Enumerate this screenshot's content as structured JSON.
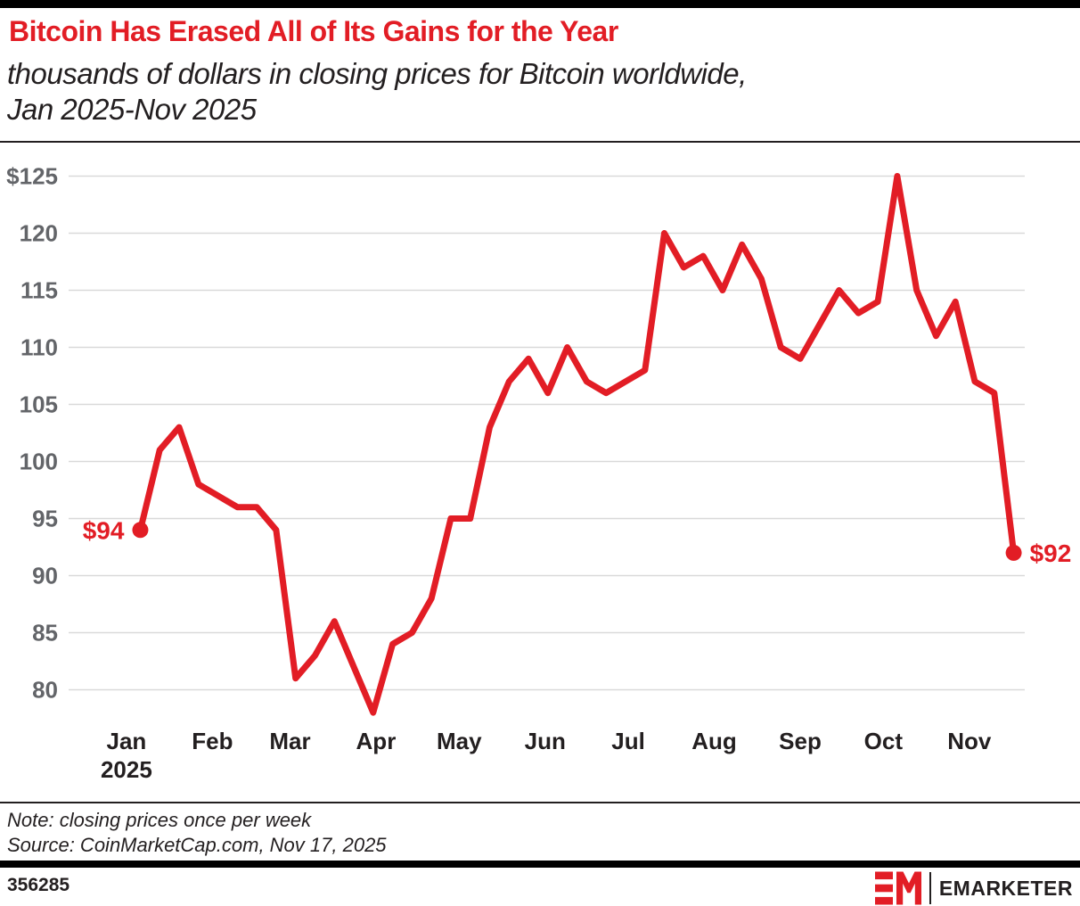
{
  "header": {
    "title": "Bitcoin Has Erased All of Its Gains for the Year",
    "subtitle_line1": "thousands of dollars in closing prices for Bitcoin worldwide,",
    "subtitle_line2": "Jan 2025-Nov 2025"
  },
  "chart_data": {
    "type": "line",
    "title": "Bitcoin weekly closing price, thousands of dollars, Jan 2025-Nov 2025",
    "xlabel": "",
    "ylabel": "thousands of dollars",
    "x_unit": "weeks (one closing price per week, Jan 6-Nov 17, 2025)",
    "values": [
      94,
      101,
      103,
      98,
      97,
      96,
      96,
      94,
      81,
      83,
      86,
      82,
      78,
      84,
      85,
      88,
      95,
      95,
      103,
      107,
      109,
      106,
      110,
      107,
      106,
      107,
      108,
      120,
      117,
      118,
      115,
      119,
      116,
      110,
      109,
      112,
      115,
      113,
      114,
      125,
      115,
      111,
      114,
      107,
      106,
      92
    ],
    "first_point": {
      "label": "$94",
      "value": 94
    },
    "last_point": {
      "label": "$92",
      "value": 92
    },
    "y_ticks": [
      {
        "label": "$125",
        "value": 125
      },
      {
        "label": "120",
        "value": 120
      },
      {
        "label": "115",
        "value": 115
      },
      {
        "label": "110",
        "value": 110
      },
      {
        "label": "105",
        "value": 105
      },
      {
        "label": "100",
        "value": 100
      },
      {
        "label": "95",
        "value": 95
      },
      {
        "label": "90",
        "value": 90
      },
      {
        "label": "85",
        "value": 85
      },
      {
        "label": "80",
        "value": 80
      }
    ],
    "x_months": [
      {
        "label": "Jan",
        "sublabel": "2025",
        "day_offset": 0
      },
      {
        "label": "Feb",
        "day_offset": 31
      },
      {
        "label": "Mar",
        "day_offset": 59
      },
      {
        "label": "Apr",
        "day_offset": 90
      },
      {
        "label": "May",
        "day_offset": 120
      },
      {
        "label": "Jun",
        "day_offset": 151
      },
      {
        "label": "Jul",
        "day_offset": 181
      },
      {
        "label": "Aug",
        "day_offset": 212
      },
      {
        "label": "Sep",
        "day_offset": 243
      },
      {
        "label": "Oct",
        "day_offset": 273
      },
      {
        "label": "Nov",
        "day_offset": 304
      }
    ],
    "ylim": [
      80,
      125
    ],
    "grid": true,
    "legend": "none",
    "line_color": "#e21d25",
    "grid_color": "#d9d9d9",
    "y_tick_color": "#636569",
    "x_tick_color": "#231f20"
  },
  "notes": {
    "note": "Note: closing prices once per week",
    "source": "Source: CoinMarketCap.com, Nov 17, 2025"
  },
  "footer": {
    "chart_id": "356285",
    "brand": "EMARKETER",
    "logo_mark": "EM-logo"
  }
}
